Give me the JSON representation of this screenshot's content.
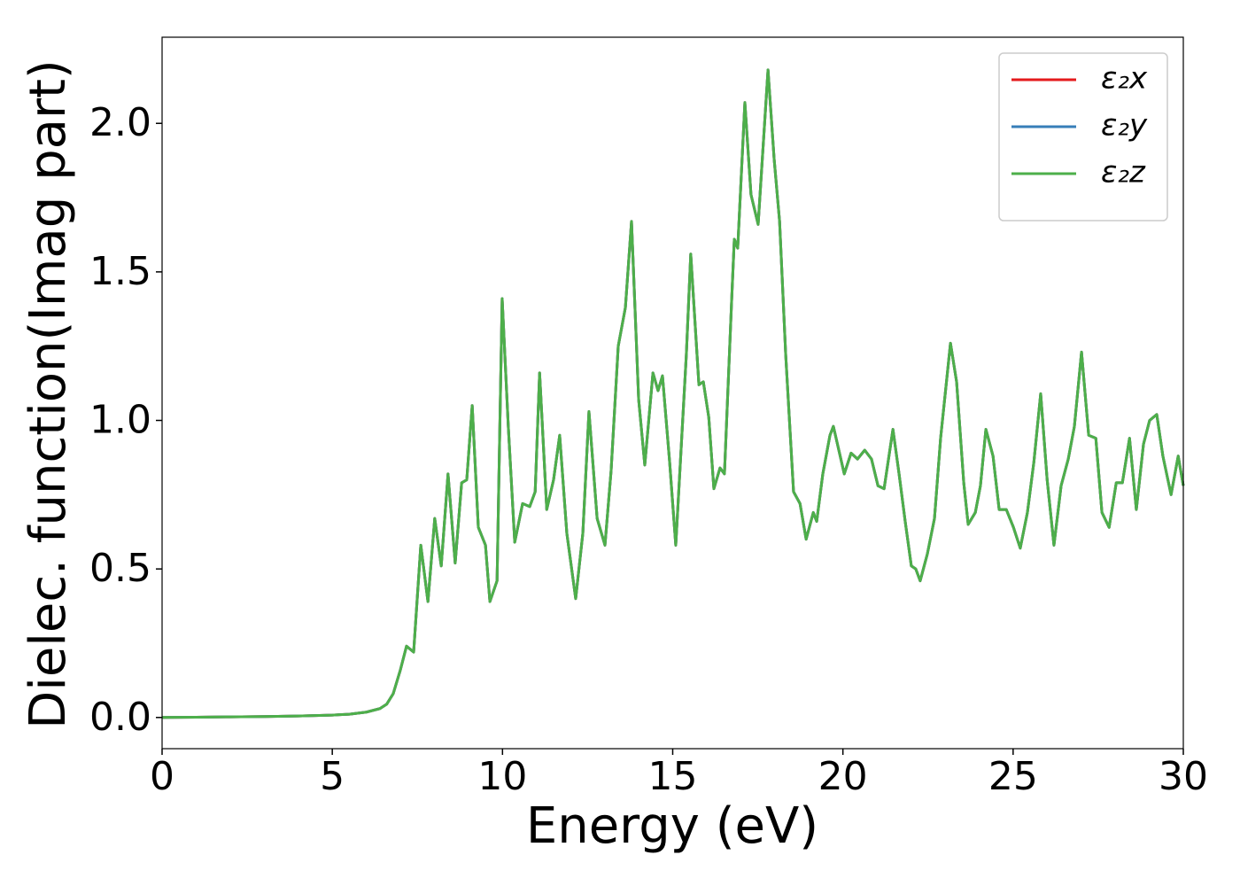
{
  "chart_data": {
    "type": "line",
    "xlabel": "Energy (eV)",
    "ylabel": "Dielec. function(Imag part)",
    "xlim": [
      0,
      30
    ],
    "ylim": [
      -0.105,
      2.29
    ],
    "xticks": [
      0,
      5,
      10,
      15,
      20,
      25,
      30
    ],
    "yticks": [
      {
        "value": 0,
        "label": "0.0"
      },
      0.5,
      {
        "value": 1,
        "label": "1.0"
      },
      1.5,
      {
        "value": 2,
        "label": "2.0"
      }
    ],
    "legend": "upper right",
    "grid": false,
    "x": [
      0,
      1,
      2,
      3,
      4,
      5,
      5.5,
      6,
      6.4,
      6.6,
      6.79,
      7.0,
      7.18,
      7.39,
      7.6,
      7.81,
      8.01,
      8.2,
      8.4,
      8.61,
      8.8,
      8.95,
      9.11,
      9.29,
      9.5,
      9.63,
      9.84,
      9.99,
      10.17,
      10.36,
      10.59,
      10.8,
      10.96,
      11.09,
      11.3,
      11.5,
      11.68,
      11.89,
      12.15,
      12.36,
      12.54,
      12.78,
      13.01,
      13.19,
      13.4,
      13.61,
      13.79,
      14.0,
      14.18,
      14.42,
      14.57,
      14.7,
      14.91,
      15.09,
      15.4,
      15.53,
      15.77,
      15.9,
      16.06,
      16.21,
      16.39,
      16.52,
      16.73,
      16.81,
      16.91,
      17.12,
      17.3,
      17.51,
      17.8,
      17.98,
      18.14,
      18.32,
      18.55,
      18.74,
      18.92,
      19.13,
      19.23,
      19.41,
      19.62,
      19.72,
      20.04,
      20.24,
      20.43,
      20.64,
      20.84,
      21.03,
      21.21,
      21.47,
      21.65,
      21.83,
      22.01,
      22.14,
      22.27,
      22.48,
      22.69,
      22.87,
      23.16,
      23.34,
      23.55,
      23.68,
      23.89,
      24.04,
      24.2,
      24.41,
      24.59,
      24.8,
      25.01,
      25.21,
      25.42,
      25.61,
      25.81,
      26.0,
      26.2,
      26.41,
      26.62,
      26.8,
      27.01,
      27.22,
      27.43,
      27.61,
      27.82,
      28.03,
      28.21,
      28.42,
      28.62,
      28.83,
      29.01,
      29.22,
      29.4,
      29.64,
      29.85,
      30
    ],
    "series": [
      {
        "name": "ε₂x",
        "color": "#e41a1c",
        "values": [
          0,
          0.001,
          0.002,
          0.003,
          0.005,
          0.008,
          0.011,
          0.018,
          0.03,
          0.045,
          0.08,
          0.16,
          0.24,
          0.22,
          0.58,
          0.39,
          0.67,
          0.51,
          0.82,
          0.52,
          0.79,
          0.8,
          1.05,
          0.64,
          0.58,
          0.39,
          0.46,
          1.41,
          0.98,
          0.59,
          0.72,
          0.71,
          0.76,
          1.16,
          0.7,
          0.8,
          0.95,
          0.62,
          0.4,
          0.62,
          1.03,
          0.67,
          0.58,
          0.83,
          1.25,
          1.38,
          1.67,
          1.07,
          0.85,
          1.16,
          1.1,
          1.15,
          0.86,
          0.58,
          1.22,
          1.56,
          1.12,
          1.13,
          1.01,
          0.77,
          0.84,
          0.82,
          1.4,
          1.61,
          1.58,
          2.07,
          1.76,
          1.66,
          2.18,
          1.88,
          1.67,
          1.22,
          0.76,
          0.72,
          0.6,
          0.69,
          0.66,
          0.82,
          0.95,
          0.98,
          0.82,
          0.89,
          0.87,
          0.9,
          0.87,
          0.78,
          0.77,
          0.97,
          0.82,
          0.66,
          0.51,
          0.5,
          0.46,
          0.55,
          0.67,
          0.94,
          1.26,
          1.13,
          0.79,
          0.65,
          0.69,
          0.78,
          0.97,
          0.88,
          0.7,
          0.7,
          0.64,
          0.57,
          0.69,
          0.86,
          1.09,
          0.8,
          0.58,
          0.78,
          0.87,
          0.98,
          1.23,
          0.95,
          0.94,
          0.69,
          0.64,
          0.79,
          0.79,
          0.94,
          0.7,
          0.92,
          1.0,
          1.02,
          0.88,
          0.75,
          0.88,
          0.78
        ]
      },
      {
        "name": "ε₂y",
        "color": "#377eb8",
        "values": [
          0,
          0.001,
          0.002,
          0.003,
          0.005,
          0.008,
          0.011,
          0.018,
          0.03,
          0.045,
          0.08,
          0.16,
          0.24,
          0.22,
          0.58,
          0.39,
          0.67,
          0.51,
          0.82,
          0.52,
          0.79,
          0.8,
          1.05,
          0.64,
          0.58,
          0.39,
          0.46,
          1.41,
          0.98,
          0.59,
          0.72,
          0.71,
          0.76,
          1.16,
          0.7,
          0.8,
          0.95,
          0.62,
          0.4,
          0.62,
          1.03,
          0.67,
          0.58,
          0.83,
          1.25,
          1.38,
          1.67,
          1.07,
          0.85,
          1.16,
          1.1,
          1.15,
          0.86,
          0.58,
          1.22,
          1.56,
          1.12,
          1.13,
          1.01,
          0.77,
          0.84,
          0.82,
          1.4,
          1.61,
          1.58,
          2.07,
          1.76,
          1.66,
          2.18,
          1.88,
          1.67,
          1.22,
          0.76,
          0.72,
          0.6,
          0.69,
          0.66,
          0.82,
          0.95,
          0.98,
          0.82,
          0.89,
          0.87,
          0.9,
          0.87,
          0.78,
          0.77,
          0.97,
          0.82,
          0.66,
          0.51,
          0.5,
          0.46,
          0.55,
          0.67,
          0.94,
          1.26,
          1.13,
          0.79,
          0.65,
          0.69,
          0.78,
          0.97,
          0.88,
          0.7,
          0.7,
          0.64,
          0.57,
          0.69,
          0.86,
          1.09,
          0.8,
          0.58,
          0.78,
          0.87,
          0.98,
          1.23,
          0.95,
          0.94,
          0.69,
          0.64,
          0.79,
          0.79,
          0.94,
          0.7,
          0.92,
          1.0,
          1.02,
          0.88,
          0.75,
          0.88,
          0.78
        ]
      },
      {
        "name": "ε₂z",
        "color": "#4daf4a",
        "values": [
          0,
          0.001,
          0.002,
          0.003,
          0.005,
          0.008,
          0.011,
          0.018,
          0.03,
          0.045,
          0.08,
          0.16,
          0.24,
          0.22,
          0.58,
          0.39,
          0.67,
          0.51,
          0.82,
          0.52,
          0.79,
          0.8,
          1.05,
          0.64,
          0.58,
          0.39,
          0.46,
          1.41,
          0.98,
          0.59,
          0.72,
          0.71,
          0.76,
          1.16,
          0.7,
          0.8,
          0.95,
          0.62,
          0.4,
          0.62,
          1.03,
          0.67,
          0.58,
          0.83,
          1.25,
          1.38,
          1.67,
          1.07,
          0.85,
          1.16,
          1.1,
          1.15,
          0.86,
          0.58,
          1.22,
          1.56,
          1.12,
          1.13,
          1.01,
          0.77,
          0.84,
          0.82,
          1.4,
          1.61,
          1.58,
          2.07,
          1.76,
          1.66,
          2.18,
          1.88,
          1.67,
          1.22,
          0.76,
          0.72,
          0.6,
          0.69,
          0.66,
          0.82,
          0.95,
          0.98,
          0.82,
          0.89,
          0.87,
          0.9,
          0.87,
          0.78,
          0.77,
          0.97,
          0.82,
          0.66,
          0.51,
          0.5,
          0.46,
          0.55,
          0.67,
          0.94,
          1.26,
          1.13,
          0.79,
          0.65,
          0.69,
          0.78,
          0.97,
          0.88,
          0.7,
          0.7,
          0.64,
          0.57,
          0.69,
          0.86,
          1.09,
          0.8,
          0.58,
          0.78,
          0.87,
          0.98,
          1.23,
          0.95,
          0.94,
          0.69,
          0.64,
          0.79,
          0.79,
          0.94,
          0.7,
          0.92,
          1.0,
          1.02,
          0.88,
          0.75,
          0.88,
          0.78
        ]
      }
    ]
  }
}
